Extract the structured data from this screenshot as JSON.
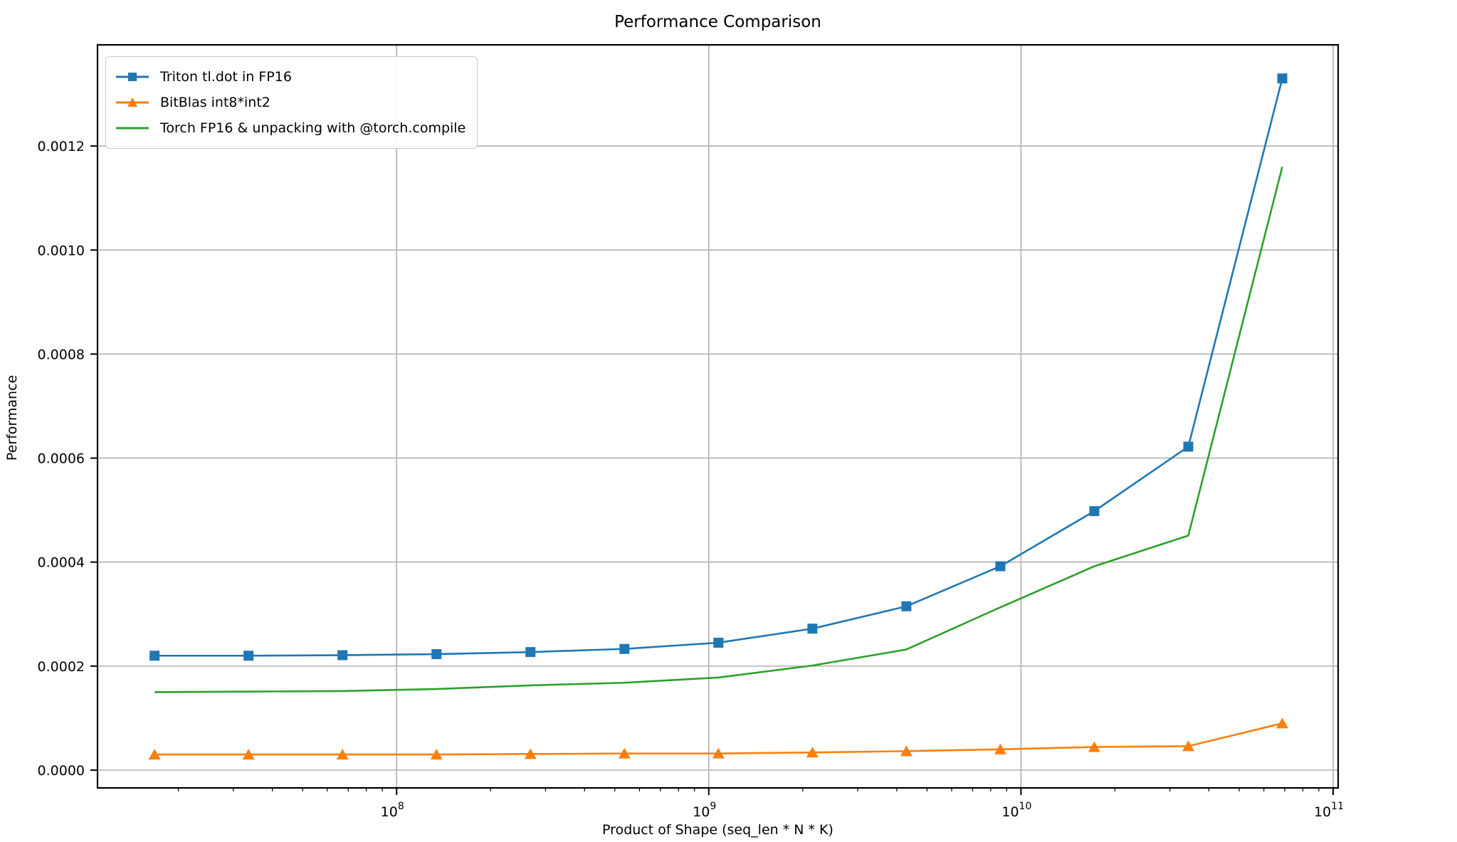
{
  "chart_data": {
    "type": "line",
    "title": "Performance Comparison",
    "xlabel": "Product of Shape (seq_len * N * K)",
    "ylabel": "Performance",
    "x_scale": "log",
    "grid": true,
    "legend_position": "upper left",
    "x_range_log10": [
      7.042,
      11.016
    ],
    "y_range": [
      -3.42e-05,
      0.0013946
    ],
    "x": [
      16777216,
      33554432,
      67108864,
      134217728,
      268435456,
      536870912,
      1073741824,
      2147483648,
      4294967296,
      8589934592,
      17179869184,
      34359738368,
      68719476736
    ],
    "series": [
      {
        "name": "Triton tl.dot in FP16",
        "color": "#1f77b4",
        "marker": "square",
        "values": [
          0.00022,
          0.00022,
          0.000221,
          0.000223,
          0.000227,
          0.000233,
          0.000245,
          0.000272,
          0.000315,
          0.000392,
          0.000498,
          0.000622,
          0.00133
        ]
      },
      {
        "name": "BitBlas int8*int2",
        "color": "#ff7f0e",
        "marker": "triangle",
        "values": [
          3e-05,
          3e-05,
          3e-05,
          3e-05,
          3.1e-05,
          3.2e-05,
          3.2e-05,
          3.4e-05,
          3.65e-05,
          4e-05,
          4.45e-05,
          4.6e-05,
          9e-05
        ]
      },
      {
        "name": "Torch FP16 & unpacking with @torch.compile",
        "color": "#2ca02c",
        "marker": "none",
        "values": [
          0.00015,
          0.000151,
          0.000152,
          0.000156,
          0.000163,
          0.000168,
          0.000178,
          0.000201,
          0.000232,
          0.000313,
          0.000392,
          0.000451,
          0.00116
        ]
      }
    ],
    "x_major_ticks": [
      {
        "value": 100000000,
        "base": "10",
        "exp": "8"
      },
      {
        "value": 1000000000,
        "base": "10",
        "exp": "9"
      },
      {
        "value": 10000000000,
        "base": "10",
        "exp": "10"
      },
      {
        "value": 100000000000,
        "base": "10",
        "exp": "11"
      }
    ],
    "y_ticks": [
      {
        "value": 0.0,
        "label": "0.0000"
      },
      {
        "value": 0.0002,
        "label": "0.0002"
      },
      {
        "value": 0.0004,
        "label": "0.0004"
      },
      {
        "value": 0.0006,
        "label": "0.0006"
      },
      {
        "value": 0.0008,
        "label": "0.0008"
      },
      {
        "value": 0.001,
        "label": "0.0010"
      },
      {
        "value": 0.0012,
        "label": "0.0012"
      }
    ],
    "colors": {
      "grid": "#b0b0b0",
      "spine": "#000000",
      "tick": "#000000",
      "text": "#000000",
      "legend_border": "#cccccc"
    }
  }
}
